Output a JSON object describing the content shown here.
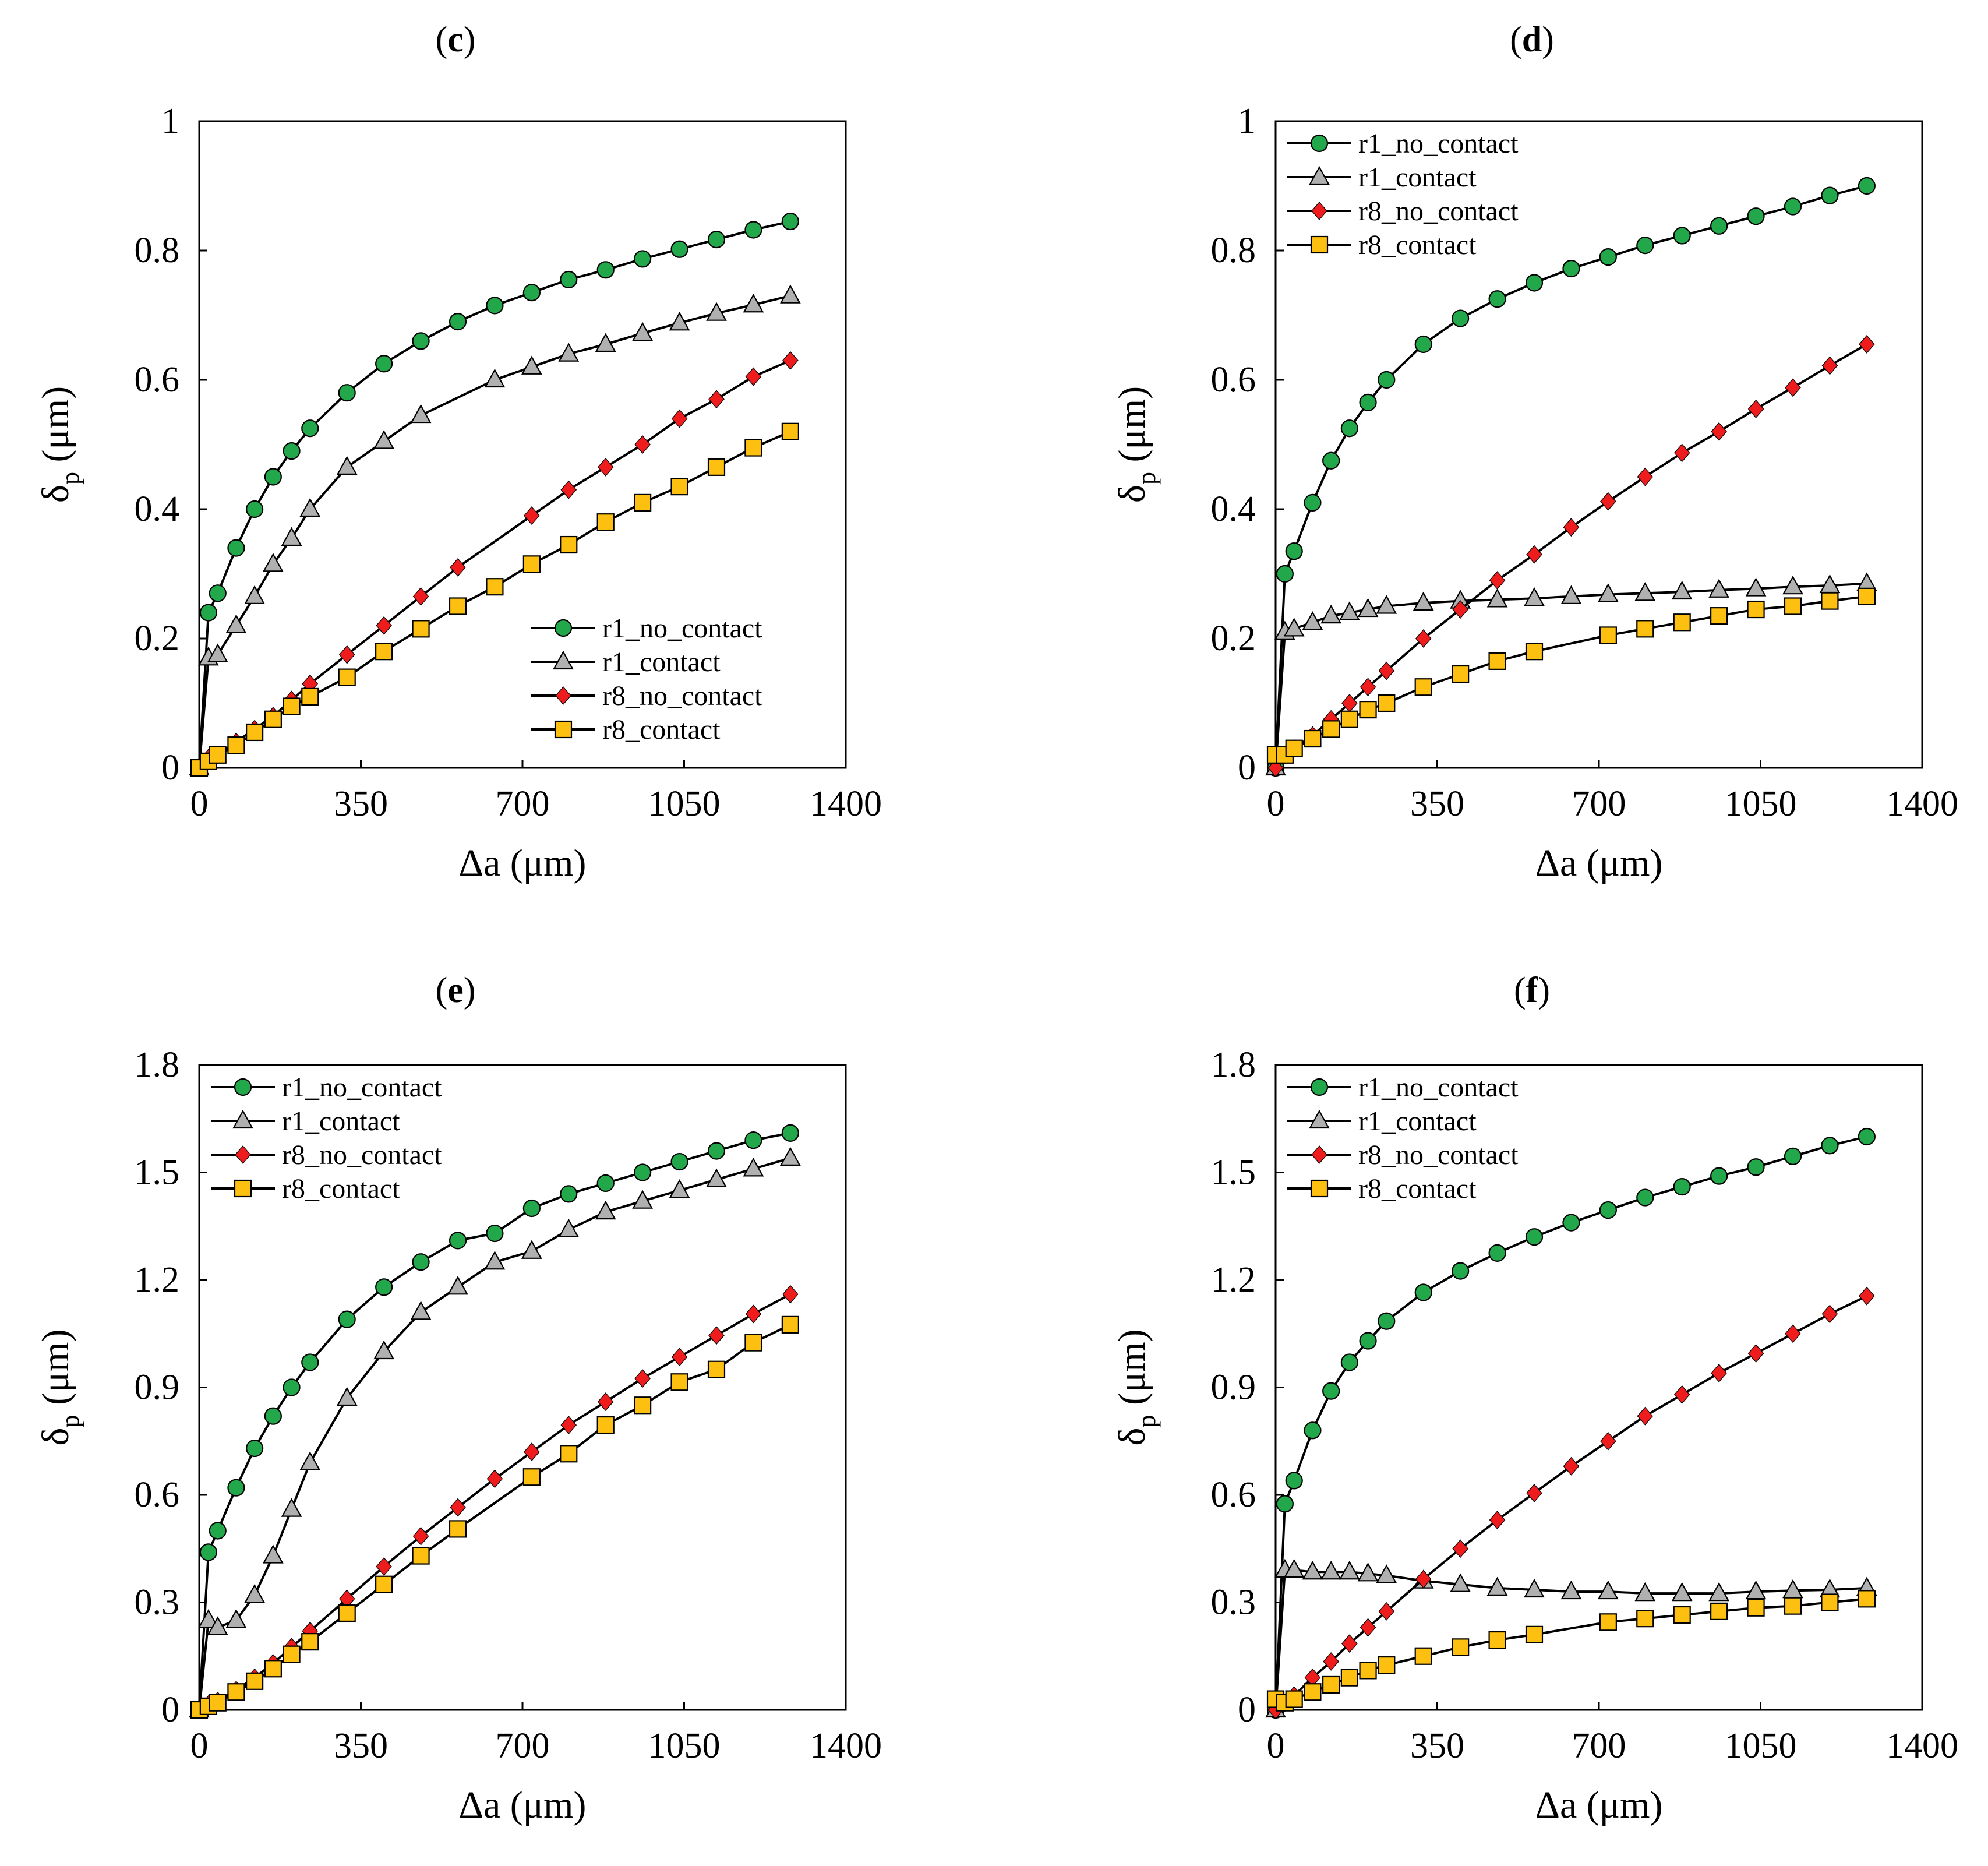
{
  "figure": {
    "axis_label_x": "Δa (μm)",
    "axis_label_y_main": "δ",
    "axis_label_y_sub": "p",
    "axis_label_y_unit": "(μm)"
  },
  "legend_names": [
    "r1_no_contact",
    "r1_contact",
    "r8_no_contact",
    "r8_contact"
  ],
  "series_styles": [
    {
      "name": "r1_no_contact",
      "marker": "circle",
      "color": "#22a84a"
    },
    {
      "name": "r1_contact",
      "marker": "triangle",
      "color": "#b0b0b0"
    },
    {
      "name": "r8_no_contact",
      "marker": "diamond",
      "color": "#ee1c1c"
    },
    {
      "name": "r8_contact",
      "marker": "square",
      "color": "#fdc010"
    }
  ],
  "chart_data": [
    {
      "panel": "c",
      "type": "line",
      "xlabel": "Δa (μm)",
      "ylabel": "δp (μm)",
      "xlim": [
        0,
        1400
      ],
      "ylim": [
        0,
        1
      ],
      "xticks": [
        0,
        350,
        700,
        1050,
        1400
      ],
      "yticks": [
        0,
        0.2,
        0.4,
        0.6,
        0.8,
        1
      ],
      "ytick_labels": [
        "0",
        "0.2",
        "0.4",
        "0.6",
        "0.8",
        "1"
      ],
      "legend_position": "bottom-right",
      "series": [
        {
          "name": "r1_no_contact",
          "x": [
            0,
            20,
            40,
            80,
            120,
            160,
            200,
            240,
            320,
            400,
            480,
            560,
            640,
            720,
            800,
            880,
            960,
            1040,
            1120,
            1200,
            1280
          ],
          "y": [
            0,
            0.24,
            0.27,
            0.34,
            0.4,
            0.45,
            0.49,
            0.525,
            0.58,
            0.625,
            0.66,
            0.69,
            0.715,
            0.735,
            0.755,
            0.77,
            0.787,
            0.802,
            0.817,
            0.832,
            0.845
          ]
        },
        {
          "name": "r1_contact",
          "x": [
            0,
            20,
            40,
            80,
            120,
            160,
            200,
            240,
            320,
            400,
            480,
            640,
            720,
            800,
            880,
            960,
            1040,
            1120,
            1200,
            1280
          ],
          "y": [
            0,
            0.17,
            0.175,
            0.22,
            0.265,
            0.315,
            0.355,
            0.4,
            0.465,
            0.505,
            0.545,
            0.6,
            0.62,
            0.64,
            0.655,
            0.672,
            0.688,
            0.703,
            0.716,
            0.73
          ]
        },
        {
          "name": "r8_no_contact",
          "x": [
            0,
            20,
            40,
            80,
            120,
            160,
            200,
            240,
            320,
            400,
            480,
            560,
            720,
            800,
            880,
            960,
            1040,
            1120,
            1200,
            1280
          ],
          "y": [
            0,
            0.015,
            0.02,
            0.04,
            0.06,
            0.08,
            0.105,
            0.13,
            0.175,
            0.22,
            0.265,
            0.31,
            0.39,
            0.43,
            0.465,
            0.5,
            0.54,
            0.57,
            0.605,
            0.63
          ]
        },
        {
          "name": "r8_contact",
          "x": [
            0,
            20,
            40,
            80,
            120,
            160,
            200,
            240,
            320,
            400,
            480,
            560,
            640,
            720,
            800,
            880,
            960,
            1040,
            1120,
            1200,
            1280
          ],
          "y": [
            0,
            0.01,
            0.02,
            0.035,
            0.055,
            0.075,
            0.095,
            0.11,
            0.14,
            0.18,
            0.215,
            0.25,
            0.28,
            0.315,
            0.345,
            0.38,
            0.41,
            0.435,
            0.465,
            0.495,
            0.52
          ]
        }
      ]
    },
    {
      "panel": "d",
      "type": "line",
      "xlabel": "Δa (μm)",
      "ylabel": "δp (μm)",
      "xlim": [
        0,
        1400
      ],
      "ylim": [
        0,
        1
      ],
      "xticks": [
        0,
        350,
        700,
        1050,
        1400
      ],
      "yticks": [
        0,
        0.2,
        0.4,
        0.6,
        0.8,
        1
      ],
      "ytick_labels": [
        "0",
        "0.2",
        "0.4",
        "0.6",
        "0.8",
        "1"
      ],
      "legend_position": "top-left",
      "series": [
        {
          "name": "r1_no_contact",
          "x": [
            0,
            20,
            40,
            80,
            120,
            160,
            200,
            240,
            320,
            400,
            480,
            560,
            640,
            720,
            800,
            880,
            960,
            1040,
            1120,
            1200,
            1280
          ],
          "y": [
            0,
            0.3,
            0.335,
            0.41,
            0.475,
            0.525,
            0.565,
            0.6,
            0.655,
            0.695,
            0.725,
            0.75,
            0.772,
            0.79,
            0.808,
            0.823,
            0.838,
            0.853,
            0.868,
            0.885,
            0.9
          ]
        },
        {
          "name": "r1_contact",
          "x": [
            0,
            20,
            40,
            80,
            120,
            160,
            200,
            240,
            320,
            400,
            480,
            560,
            640,
            720,
            800,
            880,
            960,
            1040,
            1120,
            1200,
            1280
          ],
          "y": [
            0,
            0.21,
            0.215,
            0.225,
            0.235,
            0.24,
            0.245,
            0.25,
            0.255,
            0.258,
            0.26,
            0.262,
            0.265,
            0.268,
            0.27,
            0.272,
            0.275,
            0.277,
            0.28,
            0.282,
            0.285
          ]
        },
        {
          "name": "r8_no_contact",
          "x": [
            0,
            20,
            40,
            80,
            120,
            160,
            200,
            240,
            320,
            400,
            480,
            560,
            640,
            720,
            800,
            880,
            960,
            1040,
            1120,
            1200,
            1280
          ],
          "y": [
            0,
            0.02,
            0.03,
            0.05,
            0.075,
            0.1,
            0.125,
            0.15,
            0.2,
            0.245,
            0.29,
            0.33,
            0.372,
            0.412,
            0.45,
            0.487,
            0.52,
            0.555,
            0.588,
            0.622,
            0.655
          ]
        },
        {
          "name": "r8_contact",
          "x": [
            0,
            20,
            40,
            80,
            120,
            160,
            200,
            240,
            320,
            400,
            480,
            560,
            720,
            800,
            880,
            960,
            1040,
            1120,
            1200,
            1280
          ],
          "y": [
            0.02,
            0.02,
            0.03,
            0.045,
            0.06,
            0.075,
            0.09,
            0.1,
            0.125,
            0.145,
            0.165,
            0.18,
            0.205,
            0.215,
            0.225,
            0.235,
            0.245,
            0.25,
            0.258,
            0.265
          ]
        }
      ]
    },
    {
      "panel": "e",
      "type": "line",
      "xlabel": "Δa (μm)",
      "ylabel": "δp (μm)",
      "xlim": [
        0,
        1400
      ],
      "ylim": [
        0,
        1.8
      ],
      "xticks": [
        0,
        350,
        700,
        1050,
        1400
      ],
      "yticks": [
        0,
        0.3,
        0.6,
        0.9,
        1.2,
        1.5,
        1.8
      ],
      "ytick_labels": [
        "0",
        "0.3",
        "0.6",
        "0.9",
        "1.2",
        "1.5",
        "1.8"
      ],
      "legend_position": "top-left",
      "series": [
        {
          "name": "r1_no_contact",
          "x": [
            0,
            20,
            40,
            80,
            120,
            160,
            200,
            240,
            320,
            400,
            480,
            560,
            640,
            720,
            800,
            880,
            960,
            1040,
            1120,
            1200,
            1280
          ],
          "y": [
            0,
            0.44,
            0.5,
            0.62,
            0.73,
            0.82,
            0.9,
            0.97,
            1.09,
            1.18,
            1.25,
            1.31,
            1.33,
            1.4,
            1.44,
            1.47,
            1.5,
            1.53,
            1.56,
            1.59,
            1.61
          ]
        },
        {
          "name": "r1_contact",
          "x": [
            0,
            20,
            40,
            80,
            120,
            160,
            200,
            240,
            320,
            400,
            480,
            560,
            640,
            720,
            800,
            880,
            960,
            1040,
            1120,
            1200,
            1280
          ],
          "y": [
            0,
            0.25,
            0.23,
            0.25,
            0.32,
            0.43,
            0.56,
            0.69,
            0.87,
            1.0,
            1.11,
            1.18,
            1.25,
            1.28,
            1.34,
            1.39,
            1.42,
            1.45,
            1.48,
            1.51,
            1.54
          ]
        },
        {
          "name": "r8_no_contact",
          "x": [
            0,
            20,
            40,
            80,
            120,
            160,
            200,
            240,
            320,
            400,
            480,
            560,
            640,
            720,
            800,
            880,
            960,
            1040,
            1120,
            1200,
            1280
          ],
          "y": [
            0,
            0.015,
            0.025,
            0.055,
            0.09,
            0.13,
            0.175,
            0.22,
            0.31,
            0.4,
            0.485,
            0.565,
            0.645,
            0.72,
            0.795,
            0.86,
            0.925,
            0.985,
            1.045,
            1.105,
            1.16
          ]
        },
        {
          "name": "r8_contact",
          "x": [
            0,
            20,
            40,
            80,
            120,
            160,
            200,
            240,
            320,
            400,
            480,
            560,
            720,
            800,
            880,
            960,
            1040,
            1120,
            1200,
            1280
          ],
          "y": [
            0,
            0.01,
            0.02,
            0.05,
            0.08,
            0.115,
            0.155,
            0.19,
            0.27,
            0.35,
            0.43,
            0.505,
            0.65,
            0.715,
            0.795,
            0.85,
            0.915,
            0.95,
            1.025,
            1.075
          ]
        }
      ]
    },
    {
      "panel": "f",
      "type": "line",
      "xlabel": "Δa (μm)",
      "ylabel": "δp (μm)",
      "xlim": [
        0,
        1400
      ],
      "ylim": [
        0,
        1.8
      ],
      "xticks": [
        0,
        350,
        700,
        1050,
        1400
      ],
      "yticks": [
        0,
        0.3,
        0.6,
        0.9,
        1.2,
        1.5,
        1.8
      ],
      "ytick_labels": [
        "0",
        "0.3",
        "0.6",
        "0.9",
        "1.2",
        "1.5",
        "1.8"
      ],
      "legend_position": "top-left",
      "series": [
        {
          "name": "r1_no_contact",
          "x": [
            0,
            20,
            40,
            80,
            120,
            160,
            200,
            240,
            320,
            400,
            480,
            560,
            640,
            720,
            800,
            880,
            960,
            1040,
            1120,
            1200,
            1280
          ],
          "y": [
            0,
            0.575,
            0.64,
            0.78,
            0.89,
            0.97,
            1.03,
            1.085,
            1.165,
            1.225,
            1.275,
            1.32,
            1.36,
            1.395,
            1.43,
            1.46,
            1.49,
            1.515,
            1.545,
            1.575,
            1.6
          ]
        },
        {
          "name": "r1_contact",
          "x": [
            0,
            20,
            40,
            80,
            120,
            160,
            200,
            240,
            320,
            400,
            480,
            560,
            640,
            720,
            800,
            880,
            960,
            1040,
            1120,
            1200,
            1280
          ],
          "y": [
            0,
            0.39,
            0.39,
            0.385,
            0.385,
            0.385,
            0.38,
            0.375,
            0.36,
            0.35,
            0.34,
            0.335,
            0.33,
            0.33,
            0.325,
            0.325,
            0.325,
            0.33,
            0.333,
            0.335,
            0.34
          ]
        },
        {
          "name": "r8_no_contact",
          "x": [
            0,
            20,
            40,
            80,
            120,
            160,
            200,
            240,
            320,
            400,
            480,
            560,
            640,
            720,
            800,
            880,
            960,
            1040,
            1120,
            1200,
            1280
          ],
          "y": [
            0,
            0.02,
            0.04,
            0.09,
            0.135,
            0.185,
            0.23,
            0.275,
            0.365,
            0.45,
            0.53,
            0.605,
            0.68,
            0.75,
            0.82,
            0.88,
            0.94,
            0.995,
            1.05,
            1.105,
            1.155
          ]
        },
        {
          "name": "r8_contact",
          "x": [
            0,
            20,
            40,
            80,
            120,
            160,
            200,
            240,
            320,
            400,
            480,
            560,
            720,
            800,
            880,
            960,
            1040,
            1120,
            1200,
            1280
          ],
          "y": [
            0.03,
            0.02,
            0.03,
            0.05,
            0.07,
            0.09,
            0.11,
            0.125,
            0.15,
            0.175,
            0.195,
            0.21,
            0.245,
            0.255,
            0.265,
            0.275,
            0.285,
            0.29,
            0.3,
            0.31
          ]
        }
      ]
    }
  ]
}
